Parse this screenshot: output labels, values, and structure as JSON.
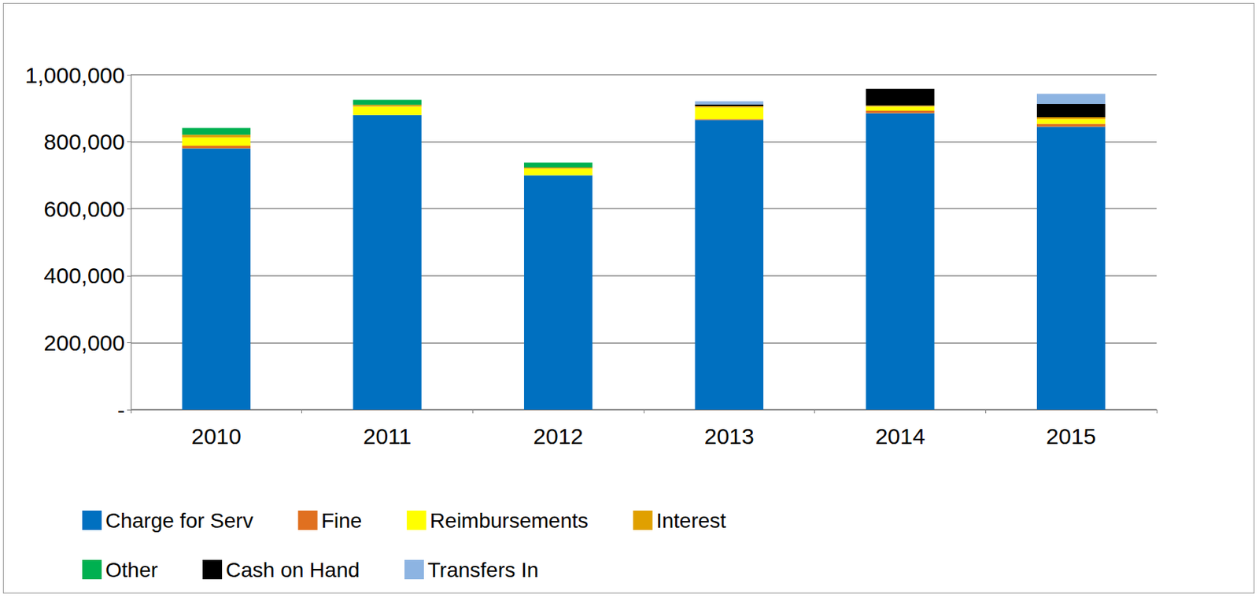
{
  "chart_data": {
    "type": "bar",
    "stacked": true,
    "grid": true,
    "legend": "bottom",
    "categories": [
      "2010",
      "2011",
      "2012",
      "2013",
      "2014",
      "2015"
    ],
    "ylim": [
      0,
      1000000
    ],
    "yticks": [
      {
        "value": 0,
        "label": "-"
      },
      {
        "value": 200000,
        "label": "200,000"
      },
      {
        "value": 400000,
        "label": "400,000"
      },
      {
        "value": 600000,
        "label": "600,000"
      },
      {
        "value": 800000,
        "label": "800,000"
      },
      {
        "value": 1000000,
        "label": "1,000,000"
      }
    ],
    "series": [
      {
        "name": "Charge for Serv",
        "color": "#0070c0",
        "values": [
          780000,
          880000,
          700000,
          865000,
          885000,
          845000
        ]
      },
      {
        "name": "Fine",
        "color": "#e07020",
        "values": [
          8000,
          0,
          0,
          3000,
          8000,
          8000
        ]
      },
      {
        "name": "Reimbursements",
        "color": "#ffff00",
        "values": [
          25000,
          25000,
          20000,
          35000,
          12000,
          15000
        ]
      },
      {
        "name": "Interest",
        "color": "#e0a000",
        "values": [
          8000,
          5000,
          3000,
          3000,
          3000,
          5000
        ]
      },
      {
        "name": "Other",
        "color": "#00b050",
        "values": [
          20000,
          15000,
          15000,
          0,
          0,
          0
        ]
      },
      {
        "name": "Cash on Hand",
        "color": "#000000",
        "values": [
          0,
          0,
          0,
          5000,
          50000,
          40000
        ]
      },
      {
        "name": "Transfers In",
        "color": "#8db4e2",
        "values": [
          0,
          0,
          0,
          10000,
          0,
          30000
        ]
      }
    ]
  }
}
